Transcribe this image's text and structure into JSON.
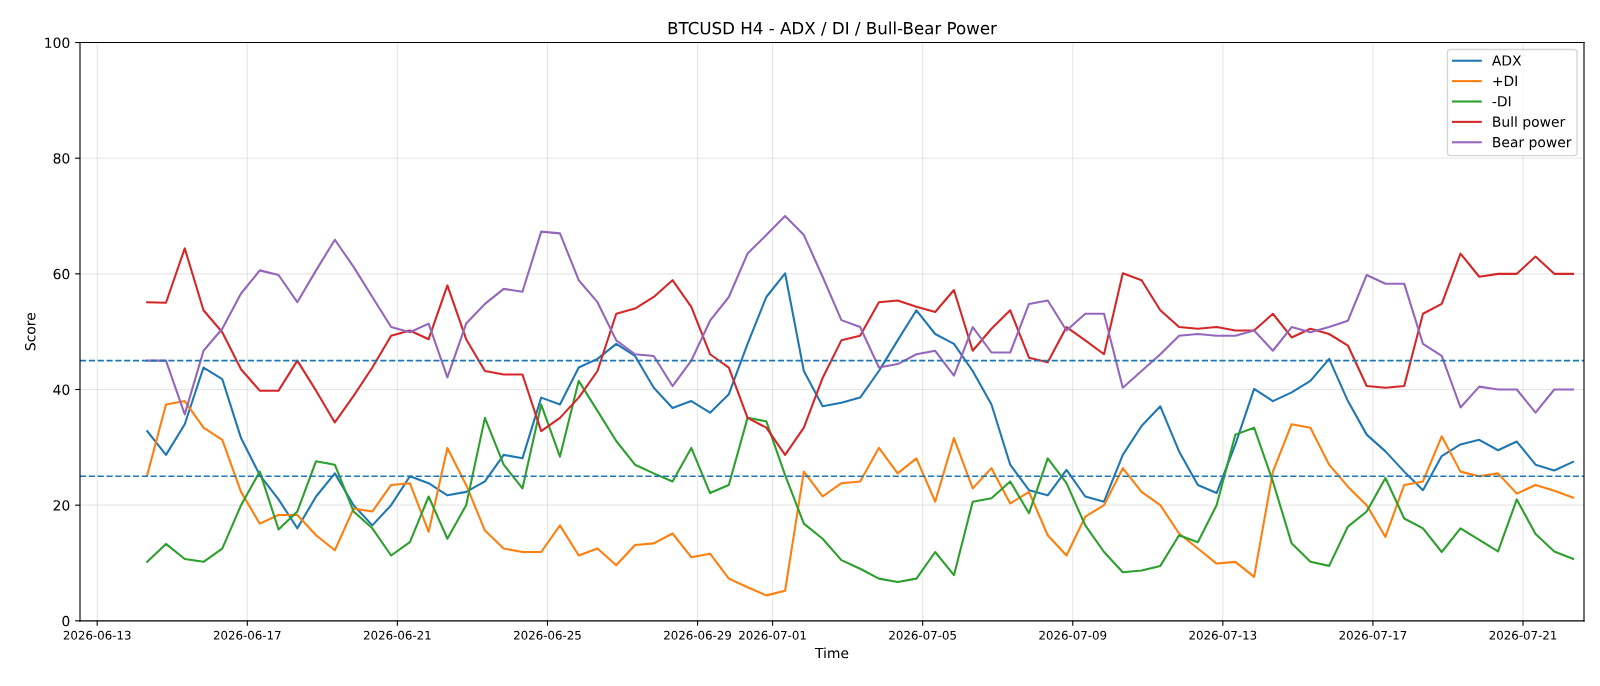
{
  "chart_data": {
    "type": "line",
    "title": "BTCUSD H4 - ADX / DI / Bull-Bear Power",
    "xlabel": "Time",
    "ylabel": "Score",
    "x": [
      "2026-06-14T08:00",
      "2026-06-14T20:00",
      "2026-06-15T08:00",
      "2026-06-15T20:00",
      "2026-06-16T08:00",
      "2026-06-16T20:00",
      "2026-06-17T08:00",
      "2026-06-17T20:00",
      "2026-06-18T08:00",
      "2026-06-18T20:00",
      "2026-06-19T08:00",
      "2026-06-19T20:00",
      "2026-06-20T08:00",
      "2026-06-20T20:00",
      "2026-06-21T08:00",
      "2026-06-21T20:00",
      "2026-06-22T08:00",
      "2026-06-22T20:00",
      "2026-06-23T08:00",
      "2026-06-23T20:00",
      "2026-06-24T08:00",
      "2026-06-24T20:00",
      "2026-06-25T08:00",
      "2026-06-25T20:00",
      "2026-06-26T08:00",
      "2026-06-26T20:00",
      "2026-06-27T08:00",
      "2026-06-27T20:00",
      "2026-06-28T08:00",
      "2026-06-28T20:00",
      "2026-06-29T08:00",
      "2026-06-29T20:00",
      "2026-06-30T08:00",
      "2026-06-30T20:00",
      "2026-07-01T08:00",
      "2026-07-01T20:00",
      "2026-07-02T08:00",
      "2026-07-02T20:00",
      "2026-07-03T08:00",
      "2026-07-03T20:00",
      "2026-07-04T08:00",
      "2026-07-04T20:00",
      "2026-07-05T08:00",
      "2026-07-05T20:00",
      "2026-07-06T08:00",
      "2026-07-06T20:00",
      "2026-07-07T08:00",
      "2026-07-07T20:00",
      "2026-07-08T08:00",
      "2026-07-08T20:00",
      "2026-07-09T08:00",
      "2026-07-09T20:00",
      "2026-07-10T08:00",
      "2026-07-10T20:00",
      "2026-07-11T08:00",
      "2026-07-11T20:00",
      "2026-07-12T08:00",
      "2026-07-12T20:00",
      "2026-07-13T08:00",
      "2026-07-13T20:00",
      "2026-07-14T08:00",
      "2026-07-14T20:00",
      "2026-07-15T08:00",
      "2026-07-15T20:00",
      "2026-07-16T08:00",
      "2026-07-16T20:00",
      "2026-07-17T08:00",
      "2026-07-17T20:00",
      "2026-07-18T08:00",
      "2026-07-18T20:00",
      "2026-07-19T08:00",
      "2026-07-19T20:00",
      "2026-07-20T08:00",
      "2026-07-20T20:00",
      "2026-07-21T08:00",
      "2026-07-21T20:00",
      "2026-07-22T08:00"
    ],
    "series": [
      {
        "name": "ADX",
        "color": "#1f77b4",
        "values": [
          32.8,
          28.7,
          34,
          43.8,
          41.8,
          31.6,
          25.2,
          21,
          16,
          21.5,
          25.5,
          20,
          16.5,
          20,
          25,
          23.8,
          21.7,
          22.3,
          24.1,
          28.7,
          28.1,
          38.6,
          37.4,
          43.8,
          45.3,
          47.9,
          45.8,
          40.3,
          36.8,
          38,
          36,
          39.2,
          47.9,
          56,
          60.1,
          43.2,
          37.1,
          37.7,
          38.6,
          43.2,
          48.5,
          53.7,
          49.6,
          47.9,
          43.2,
          37.4,
          27,
          22.6,
          21.7,
          26.1,
          21.5,
          20.6,
          28.7,
          33.7,
          37.1,
          29.3,
          23.5,
          22.1,
          30.5,
          40.1,
          38,
          39.5,
          41.5,
          45.3,
          38,
          32.2,
          29.3,
          25.8,
          22.6,
          28.5,
          30.5,
          31.3,
          29.5,
          31,
          27,
          26,
          27.5
        ]
      },
      {
        "name": "+DI",
        "color": "#ff7f0e",
        "values": [
          25.2,
          37.4,
          38,
          33.4,
          31.3,
          22.3,
          16.8,
          18.3,
          18.3,
          14.8,
          12.2,
          19.4,
          18.9,
          23.5,
          23.8,
          15.4,
          29.9,
          23.5,
          15.6,
          12.5,
          11.9,
          11.9,
          16.5,
          11.3,
          12.5,
          9.6,
          13.1,
          13.4,
          15.1,
          11,
          11.6,
          7.3,
          5.8,
          4.4,
          5.2,
          25.8,
          21.5,
          23.8,
          24.1,
          29.9,
          25.5,
          28.1,
          20.6,
          31.6,
          22.9,
          26.4,
          20.3,
          22.3,
          14.8,
          11.3,
          18,
          20,
          26.4,
          22.3,
          20,
          15.1,
          12.5,
          9.9,
          10.2,
          7.6,
          25.8,
          34,
          33.4,
          27,
          23.2,
          20,
          14.5,
          23.5,
          24.1,
          31.9,
          25.8,
          25,
          25.5,
          22,
          23.5,
          22.5,
          21.3
        ]
      },
      {
        "name": "-DI",
        "color": "#2ca02c",
        "values": [
          10.2,
          13.3,
          10.7,
          10.2,
          12.5,
          20,
          25.8,
          15.8,
          18.9,
          27.6,
          27,
          18.9,
          16,
          11.3,
          13.6,
          21.5,
          14.2,
          20,
          35.1,
          27,
          22.9,
          37.4,
          28.4,
          41.5,
          36.3,
          31.1,
          27,
          25.5,
          24.1,
          29.9,
          22.1,
          23.5,
          35.1,
          34.5,
          25.2,
          16.8,
          14.2,
          10.5,
          9,
          7.3,
          6.7,
          7.3,
          11.9,
          7.9,
          20.6,
          21.2,
          24.1,
          18.6,
          28.1,
          23.8,
          16.5,
          11.9,
          8.4,
          8.7,
          9.5,
          14.8,
          13.6,
          20,
          32.2,
          33.4,
          24.1,
          13.4,
          10.2,
          9.5,
          16.3,
          18.9,
          24.7,
          17.7,
          16,
          11.9,
          16,
          14,
          12,
          21,
          15,
          12,
          10.7
        ]
      },
      {
        "name": "Bull power",
        "color": "#d62728",
        "values": [
          55.1,
          55,
          64.4,
          53.7,
          49.9,
          43.5,
          39.8,
          39.8,
          45,
          39.8,
          34.3,
          38.9,
          43.8,
          49.3,
          50.2,
          48.7,
          58,
          48.7,
          43.2,
          42.6,
          42.6,
          32.8,
          35.1,
          38.6,
          43.2,
          53.1,
          54,
          56,
          58.9,
          54.3,
          46.1,
          43.8,
          35.1,
          33.4,
          28.7,
          33.4,
          42,
          48.5,
          49.3,
          55.1,
          55.4,
          54.3,
          53.4,
          57.2,
          46.7,
          50.5,
          53.7,
          45.5,
          44.7,
          50.8,
          48.5,
          46.1,
          60.1,
          58.9,
          53.7,
          50.8,
          50.5,
          50.8,
          50.2,
          50.2,
          53.1,
          49,
          50.5,
          49.6,
          47.6,
          40.6,
          40.3,
          40.6,
          53.1,
          54.8,
          63.5,
          59.5,
          60,
          60,
          63,
          60,
          60
        ]
      },
      {
        "name": "Bear power",
        "color": "#9467bd",
        "values": [
          45,
          45,
          35.7,
          46.7,
          50.5,
          56.6,
          60.6,
          59.8,
          55.1,
          60.6,
          65.9,
          61.2,
          56,
          50.8,
          49.9,
          51.4,
          42.1,
          51.4,
          54.8,
          57.4,
          56.9,
          67.3,
          67,
          58.9,
          55.1,
          48.5,
          46.1,
          45.8,
          40.6,
          45,
          51.9,
          56,
          63.5,
          66.7,
          70,
          66.7,
          59.5,
          52,
          50.8,
          43.8,
          44.4,
          46.1,
          46.7,
          42.4,
          50.8,
          46.4,
          46.4,
          54.8,
          55.4,
          50.2,
          53.1,
          53.1,
          40.3,
          43.2,
          46.1,
          49.3,
          49.6,
          49.3,
          49.3,
          50.2,
          46.7,
          50.8,
          49.9,
          50.8,
          51.9,
          59.8,
          58.3,
          58.3,
          47.9,
          45.8,
          36.9,
          40.5,
          40,
          40,
          36,
          40,
          40
        ]
      }
    ],
    "xlim": [
      "2026-06-12T13:00",
      "2026-07-22T15:00"
    ],
    "xticks": [
      "2026-06-13",
      "2026-06-17",
      "2026-06-21",
      "2026-06-25",
      "2026-06-29",
      "2026-07-01",
      "2026-07-05",
      "2026-07-09",
      "2026-07-13",
      "2026-07-17",
      "2026-07-21"
    ],
    "ylim": [
      0,
      100
    ],
    "yticks": [
      0,
      20,
      40,
      60,
      80,
      100
    ],
    "ref_lines": [
      {
        "axis": "y",
        "value": 45,
        "color": "#1f77b4",
        "line_style": "dashed"
      },
      {
        "axis": "y",
        "value": 25,
        "color": "#1f77b4",
        "line_style": "dashed"
      }
    ],
    "grid": true,
    "legend": "top right",
    "line_style": "solid",
    "marker": "none"
  }
}
